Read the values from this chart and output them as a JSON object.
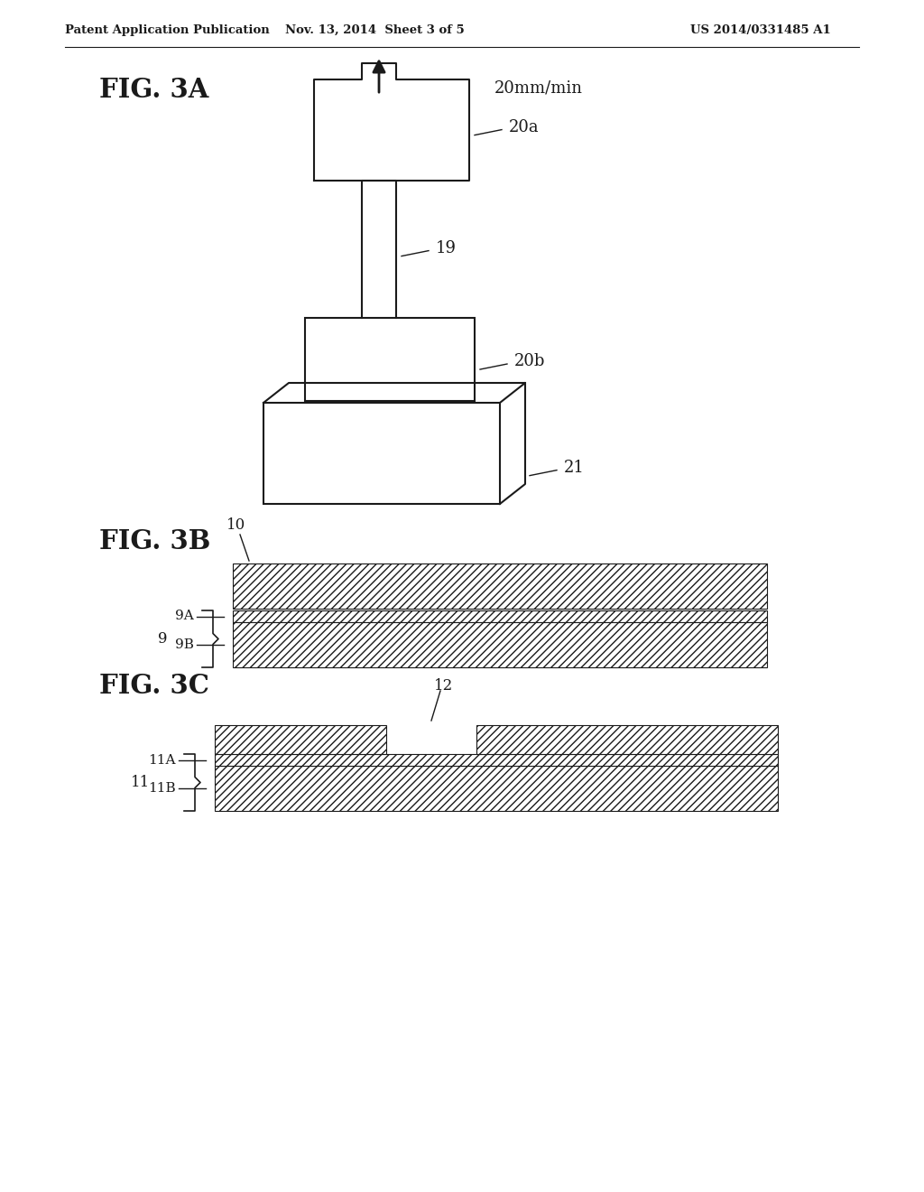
{
  "bg_color": "#ffffff",
  "line_color": "#1a1a1a",
  "header_left": "Patent Application Publication",
  "header_mid": "Nov. 13, 2014  Sheet 3 of 5",
  "header_right": "US 2014/0331485 A1",
  "fig3a_label": "FIG. 3A",
  "fig3b_label": "FIG. 3B",
  "fig3c_label": "FIG. 3C",
  "speed_label": "20mm/min",
  "label_20a": "20a",
  "label_19": "19",
  "label_20b": "20b",
  "label_21": "21",
  "label_10": "10",
  "label_9": "9",
  "label_9A": "9A",
  "label_9B": "9B",
  "label_12": "12",
  "label_11": "11",
  "label_11A": "11A",
  "label_11B": "11B"
}
